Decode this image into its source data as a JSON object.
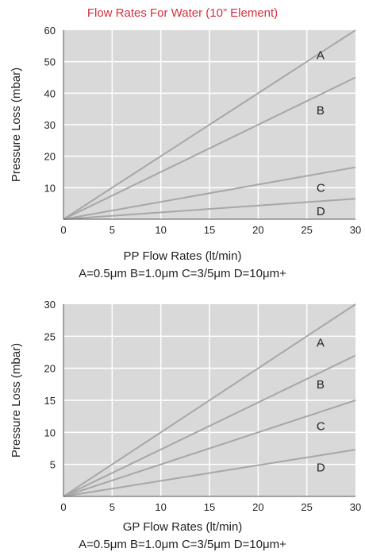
{
  "title": "Flow Rates For Water (10” Element)",
  "colors": {
    "title": "#d42e3c",
    "plot_background": "#d9d9d9",
    "grid": "#ffffff",
    "series_line": "#a7a7a7",
    "text": "#222222"
  },
  "chart_data": [
    {
      "type": "line",
      "title": "",
      "xlabel": "PP Flow Rates (lt/min)",
      "ylabel": "Pressure Loss (mbar)",
      "subcaption": "A=0.5μm B=1.0μm C=3/5μm D=10μm+",
      "xlim": [
        0,
        30
      ],
      "ylim": [
        0,
        60
      ],
      "xticks": [
        0,
        5,
        10,
        15,
        20,
        25,
        30
      ],
      "yticks": [
        10,
        20,
        30,
        40,
        50,
        60
      ],
      "grid": true,
      "series": [
        {
          "name": "A",
          "x": [
            0,
            30
          ],
          "y": [
            0,
            60
          ],
          "label_at": [
            26,
            52
          ]
        },
        {
          "name": "B",
          "x": [
            0,
            30
          ],
          "y": [
            0,
            45
          ],
          "label_at": [
            26,
            34.5
          ]
        },
        {
          "name": "C",
          "x": [
            0,
            30
          ],
          "y": [
            0,
            16.5
          ],
          "label_at": [
            26,
            10
          ]
        },
        {
          "name": "D",
          "x": [
            0,
            30
          ],
          "y": [
            0,
            6.5
          ],
          "label_at": [
            26,
            2.5
          ]
        }
      ]
    },
    {
      "type": "line",
      "title": "",
      "xlabel": "GP Flow Rates (lt/min)",
      "ylabel": "Pressure Loss (mbar)",
      "subcaption": "A=0.5μm B=1.0μm C=3/5μm D=10μm+",
      "xlim": [
        0,
        30
      ],
      "ylim": [
        0,
        30
      ],
      "xticks": [
        0,
        5,
        10,
        15,
        20,
        25,
        30
      ],
      "yticks": [
        5,
        10,
        15,
        20,
        25,
        30
      ],
      "grid": true,
      "series": [
        {
          "name": "A",
          "x": [
            0,
            30
          ],
          "y": [
            0,
            30
          ],
          "label_at": [
            26,
            24
          ]
        },
        {
          "name": "B",
          "x": [
            0,
            30
          ],
          "y": [
            0,
            22
          ],
          "label_at": [
            26,
            17.5
          ]
        },
        {
          "name": "C",
          "x": [
            0,
            30
          ],
          "y": [
            0,
            15
          ],
          "label_at": [
            26,
            11
          ]
        },
        {
          "name": "D",
          "x": [
            0,
            30
          ],
          "y": [
            0,
            7.3
          ],
          "label_at": [
            26,
            4.5
          ]
        }
      ]
    }
  ]
}
